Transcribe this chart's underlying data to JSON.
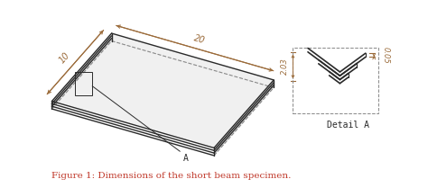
{
  "bg_color": "#ffffff",
  "line_color": "#2a2a2a",
  "dim_color": "#9B6B3A",
  "fig_caption": "Figure 1: Dimensions of the short beam specimen.",
  "caption_color": "#c0392b",
  "detail_label": "Detail A",
  "dim_10": "10",
  "dim_20": "20",
  "dim_203": "2.03",
  "dim_005": "0.05",
  "caption_fontsize": 7.5,
  "detail_fontsize": 7,
  "dim_fontsize": 7
}
